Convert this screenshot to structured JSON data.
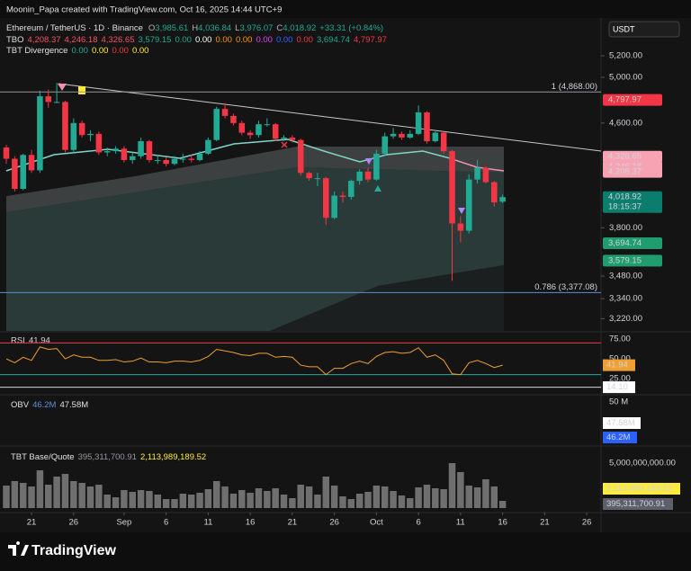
{
  "header": {
    "credit": "Moonin_Papa created with TradingView.com, Oct 16, 2025 14:44 UTC+9",
    "symbol": "Ethereum / TetherUS · 1D · Binance",
    "ohlc": [
      {
        "key": "O",
        "value": "3,985.61"
      },
      {
        "key": "H",
        "value": "4,036.84"
      },
      {
        "key": "L",
        "value": "3,976.07"
      },
      {
        "key": "C",
        "value": "4,018.92"
      }
    ],
    "change": "+33.31 (+0.84%)",
    "currency": "USDT"
  },
  "tbo": {
    "name": "TBO",
    "values": [
      {
        "text": "4,208.37",
        "color": "#f7525f"
      },
      {
        "text": "4,246.18",
        "color": "#f7525f"
      },
      {
        "text": "4,326.65",
        "color": "#f7525f"
      },
      {
        "text": "3,579.15",
        "color": "#22ab94"
      },
      {
        "text": "0.00",
        "color": "#22ab94"
      },
      {
        "text": "0.00",
        "color": "#ffffff"
      },
      {
        "text": "0.00",
        "color": "#ff9800"
      },
      {
        "text": "0.00",
        "color": "#ff9800"
      },
      {
        "text": "0.00",
        "color": "#e040fb"
      },
      {
        "text": "0.00",
        "color": "#2962ff"
      },
      {
        "text": "0.00",
        "color": "#f23645"
      },
      {
        "text": "3,694.74",
        "color": "#22ab94"
      },
      {
        "text": "4,797.97",
        "color": "#f23645"
      }
    ]
  },
  "tbt_divergence": {
    "name": "TBT Divergence",
    "values": [
      {
        "text": "0.00",
        "color": "#22ab94"
      },
      {
        "text": "0.00",
        "color": "#ffeb3b"
      },
      {
        "text": "0.00",
        "color": "#f23645"
      },
      {
        "text": "0.00",
        "color": "#ffeb3b"
      }
    ]
  },
  "chart_data": {
    "type": "candlestick",
    "log": true,
    "grid": false,
    "up_color": "#22ab94",
    "down_color": "#f23645",
    "xlim": [
      -0.75,
      70.7
    ],
    "xticks": [
      {
        "value": 3,
        "label": "21"
      },
      {
        "value": 8,
        "label": "26"
      },
      {
        "value": 14,
        "label": "Sep"
      },
      {
        "value": 19,
        "label": "6"
      },
      {
        "value": 24,
        "label": "11"
      },
      {
        "value": 29,
        "label": "16"
      },
      {
        "value": 34,
        "label": "21"
      },
      {
        "value": 39,
        "label": "26"
      },
      {
        "value": 44,
        "label": "Oct"
      },
      {
        "value": 49,
        "label": "6"
      },
      {
        "value": 54,
        "label": "11"
      },
      {
        "value": 59,
        "label": "16"
      },
      {
        "value": 64,
        "label": "21"
      },
      {
        "value": 69,
        "label": "26"
      }
    ],
    "ylim": [
      3149,
      5571
    ],
    "yticks": [
      {
        "value": 5200,
        "label": "5,200.00"
      },
      {
        "value": 5000,
        "label": "5,000.00"
      },
      {
        "value": 4600,
        "label": "4,600.00"
      },
      {
        "value": 3800,
        "label": "3,800.00"
      },
      {
        "value": 3480,
        "label": "3,480.00"
      },
      {
        "value": 3340,
        "label": "3,340.00"
      },
      {
        "value": 3220,
        "label": "3,220.00"
      }
    ],
    "open": [
      4400,
      4310,
      4080,
      4340,
      4220,
      4830,
      4780,
      4780,
      4380,
      4600,
      4500,
      4510,
      4360,
      4370,
      4390,
      4300,
      4330,
      4450,
      4300,
      4300,
      4270,
      4310,
      4310,
      4300,
      4350,
      4460,
      4720,
      4660,
      4600,
      4520,
      4500,
      4590,
      4590,
      4470,
      4480,
      4460,
      4200,
      4160,
      4160,
      3870,
      4030,
      4020,
      4140,
      4210,
      4150,
      4350,
      4490,
      4510,
      4480,
      4510,
      4690,
      4450,
      4520,
      4370,
      3830,
      3780,
      4150,
      4240,
      4130,
      3985.61
    ],
    "high": [
      4420,
      4330,
      4350,
      4380,
      4880,
      4890,
      4950,
      4790,
      4640,
      4620,
      4540,
      4530,
      4400,
      4410,
      4410,
      4360,
      4480,
      4460,
      4340,
      4320,
      4330,
      4350,
      4340,
      4370,
      4480,
      4740,
      4770,
      4680,
      4620,
      4540,
      4620,
      4640,
      4600,
      4500,
      4500,
      4470,
      4210,
      4200,
      4170,
      4060,
      4060,
      4150,
      4230,
      4240,
      4380,
      4520,
      4560,
      4530,
      4540,
      4750,
      4700,
      4530,
      4530,
      4380,
      3880,
      4190,
      4300,
      4250,
      4140,
      4036.84
    ],
    "low": [
      4270,
      4060,
      4070,
      4200,
      4200,
      4730,
      4770,
      4360,
      4350,
      4480,
      4450,
      4340,
      4330,
      4350,
      4280,
      4270,
      4310,
      4280,
      4270,
      4250,
      4260,
      4280,
      4280,
      4290,
      4340,
      4450,
      4640,
      4580,
      4500,
      4470,
      4480,
      4570,
      4450,
      4450,
      4440,
      4180,
      4140,
      4100,
      3820,
      3860,
      3980,
      4000,
      4110,
      4130,
      4140,
      4330,
      4470,
      4460,
      4470,
      4500,
      4430,
      4440,
      4350,
      3450,
      3700,
      3760,
      4120,
      4120,
      3950,
      3976.07
    ],
    "close": [
      4310,
      4080,
      4340,
      4220,
      4830,
      4780,
      4780,
      4380,
      4600,
      4500,
      4510,
      4360,
      4370,
      4390,
      4300,
      4330,
      4450,
      4300,
      4300,
      4270,
      4310,
      4310,
      4300,
      4350,
      4460,
      4720,
      4660,
      4600,
      4520,
      4500,
      4590,
      4590,
      4470,
      4480,
      4460,
      4200,
      4160,
      4160,
      3870,
      4030,
      4020,
      4140,
      4210,
      4150,
      4350,
      4490,
      4510,
      4480,
      4510,
      4690,
      4450,
      4520,
      4370,
      3830,
      3780,
      4150,
      4240,
      4130,
      3980,
      4018.92
    ],
    "fib_levels": [
      {
        "value": 4868,
        "label": "1 (4,868.00)",
        "color": "#9598a1"
      },
      {
        "value": 3377.08,
        "label": "0.786 (3,377.08)",
        "color": "#5b8fd6"
      }
    ],
    "price_tags": [
      {
        "value": 4797.97,
        "label": "4,797.97",
        "color": "#f23645",
        "text_color": "#ffffff"
      },
      {
        "value": 4326.65,
        "label": "4,326.65",
        "color": "#f7a3b4",
        "text_color": "#131313"
      },
      {
        "value": 4246.18,
        "label": "4,246.18",
        "color": "#f7a3b4",
        "text_color": "#131313"
      },
      {
        "value": 4208.37,
        "label": "4,208.37",
        "color": "#f7a3b4",
        "text_color": "#131313"
      },
      {
        "value": 4018.92,
        "label": "4,018.92",
        "color": "#0b7d6d",
        "text_color": "#ffffff",
        "countdown": "18:15:37"
      },
      {
        "value": 3694.74,
        "label": "3,694.74",
        "color": "#1f9d6e",
        "text_color": "#ffffff"
      },
      {
        "value": 3579.15,
        "label": "3,579.15",
        "color": "#1f9d6e",
        "text_color": "#ffffff"
      }
    ]
  },
  "rsi": {
    "name": "RSI",
    "color": "#f0a030",
    "ylim": [
      5.7,
      83
    ],
    "yticks": [
      {
        "value": 75,
        "label": "75.00"
      },
      {
        "value": 50,
        "label": "50.00"
      },
      {
        "value": 25,
        "label": "25.00"
      }
    ],
    "levels": [
      {
        "value": 70,
        "color": "#f23645"
      },
      {
        "value": 30,
        "color": "#22ab94"
      }
    ],
    "floor": {
      "value": 14.1,
      "label": "14.10"
    },
    "values": [
      50,
      45,
      52,
      48,
      65,
      62,
      63,
      50,
      55,
      52,
      52,
      48,
      48,
      49,
      46,
      47,
      51,
      46,
      46,
      45,
      47,
      47,
      46,
      48,
      53,
      62,
      60,
      58,
      55,
      54,
      57,
      57,
      52,
      53,
      52,
      42,
      40,
      40,
      30,
      38,
      38,
      44,
      47,
      44,
      53,
      58,
      59,
      57,
      58,
      64,
      52,
      55,
      48,
      31,
      30,
      45,
      48,
      44,
      39,
      41.94
    ]
  },
  "obv": {
    "name": "OBV",
    "value": "46.2M",
    "ma": "47.58M",
    "tick": "50 M"
  },
  "volume": {
    "name": "TBT Base/Quote",
    "value": "395,311,700.91",
    "ma": "2,113,989,189.52",
    "color": "#6f6f6f",
    "ylim": [
      0,
      6800000000
    ],
    "yticks": [
      {
        "value": 5000000000,
        "label": "5,000,000,000.00"
      }
    ],
    "values": [
      2500000000.0,
      3000000000.0,
      2800000000.0,
      2400000000.0,
      4200000000.0,
      2600000000.0,
      3500000000.0,
      3800000000.0,
      3000000000.0,
      2800000000.0,
      2400000000.0,
      2600000000.0,
      1500000000.0,
      1200000000.0,
      2000000000.0,
      1800000000.0,
      2000000000.0,
      1900000000.0,
      1500000000.0,
      1000000000.0,
      1000000000.0,
      1600000000.0,
      1500000000.0,
      1700000000.0,
      2100000000.0,
      3000000000.0,
      2400000000.0,
      1600000000.0,
      2000000000.0,
      1700000000.0,
      2200000000.0,
      1900000000.0,
      2200000000.0,
      1500000000.0,
      1100000000.0,
      2600000000.0,
      2400000000.0,
      1500000000.0,
      3500000000.0,
      2500000000.0,
      1300000000.0,
      1000000000.0,
      1600000000.0,
      1800000000.0,
      2500000000.0,
      2400000000.0,
      1900000000.0,
      1400000000.0,
      1100000000.0,
      2300000000.0,
      2600000000.0,
      2200000000.0,
      2100000000.0,
      5000000000.0,
      4000000000.0,
      2500000000.0,
      2300000000.0,
      3200000000.0,
      2400000000.0,
      800000000.0
    ]
  },
  "footer": "TradingView"
}
